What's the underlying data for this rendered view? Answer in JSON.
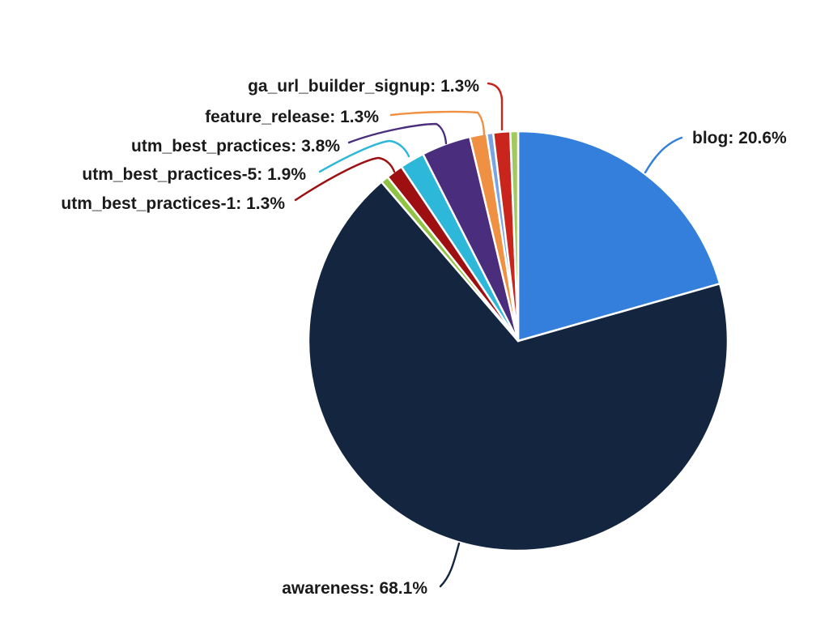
{
  "chart_data": {
    "type": "pie",
    "title": "",
    "background_color": "#ffffff",
    "start_angle_deg": -90,
    "direction": "clockwise",
    "slice_border_color": "#ffffff",
    "label_text_color": "#1a1a1a",
    "slices": [
      {
        "label": "blog",
        "value": 20.6,
        "color": "#337FDB",
        "display": "blog: 20.6%",
        "labeled": true
      },
      {
        "label": "awareness",
        "value": 68.1,
        "color": "#13253F",
        "display": "awareness: 68.1%",
        "labeled": true
      },
      {
        "label": "unlabeled-green-1",
        "value": 0.6,
        "color": "#8FC342",
        "display": "",
        "labeled": false
      },
      {
        "label": "utm_best_practices-1",
        "value": 1.3,
        "color": "#9D0F10",
        "display": "utm_best_practices-1: 1.3%",
        "labeled": true
      },
      {
        "label": "utm_best_practices-5",
        "value": 1.9,
        "color": "#2DB7D9",
        "display": "utm_best_practices-5: 1.9%",
        "labeled": true
      },
      {
        "label": "utm_best_practices",
        "value": 3.8,
        "color": "#4A2D7C",
        "display": "utm_best_practices: 3.8%",
        "labeled": true
      },
      {
        "label": "feature_release",
        "value": 1.3,
        "color": "#EF9043",
        "display": "feature_release: 1.3%",
        "labeled": true
      },
      {
        "label": "unlabeled-lightblue",
        "value": 0.5,
        "color": "#7AA3E6",
        "display": "",
        "labeled": false
      },
      {
        "label": "ga_url_builder_signup",
        "value": 1.3,
        "color": "#C9251D",
        "display": "ga_url_builder_signup: 1.3%",
        "labeled": true
      },
      {
        "label": "unlabeled-green-2",
        "value": 0.6,
        "color": "#A2C95F",
        "display": "",
        "labeled": false
      }
    ]
  }
}
